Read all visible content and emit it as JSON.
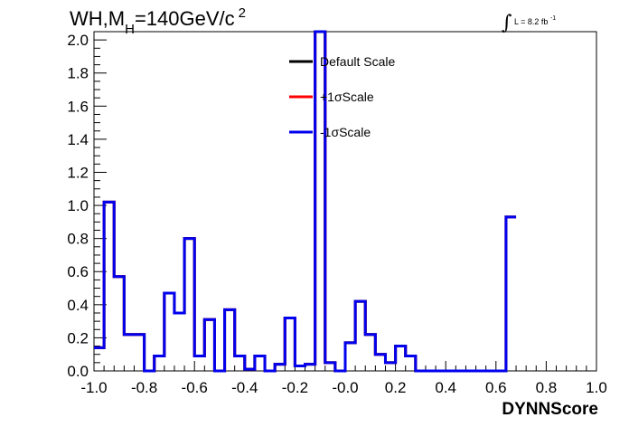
{
  "header": {
    "title_prefix": "WH,M",
    "title_sub": "H",
    "title_mid": "=140GeV/c",
    "title_sup": "2",
    "lumi_text": "L = 8.2 fb",
    "lumi_sup": "-1"
  },
  "chart_data": {
    "type": "histogram",
    "xlabel": "DYNNScore",
    "ylabel": "",
    "xlim": [
      -1.0,
      1.0
    ],
    "ylim": [
      0.0,
      2.05
    ],
    "xticks": [
      "-1.0",
      "-0.8",
      "-0.6",
      "-0.4",
      "-0.2",
      "-0.0",
      "0.2",
      "0.4",
      "0.6",
      "0.8",
      "1.0"
    ],
    "yticks": [
      "0.0",
      "0.2",
      "0.4",
      "0.6",
      "0.8",
      "1.0",
      "1.2",
      "1.4",
      "1.6",
      "1.8",
      "2.0"
    ],
    "bin_width": 0.04,
    "bin_edges_start": -1.0,
    "legend_position": "top-center",
    "series": [
      {
        "name": "Default Scale",
        "color": "#000000",
        "values": [
          0.14,
          1.02,
          0.57,
          0.22,
          0.22,
          0.0,
          0.09,
          0.47,
          0.35,
          0.8,
          0.09,
          0.31,
          0.0,
          0.37,
          0.09,
          0.01,
          0.09,
          0.0,
          0.04,
          0.32,
          0.03,
          0.04,
          2.05,
          0.05,
          0.0,
          0.17,
          0.42,
          0.22,
          0.1,
          0.05,
          0.15,
          0.09,
          0.0,
          0.0,
          0.0,
          0.0,
          0.0,
          0.0,
          0.0,
          0.0,
          0.0,
          0.93
        ]
      },
      {
        "name": "+1σScale",
        "color": "#ff0000",
        "values": [
          0.14,
          1.02,
          0.57,
          0.22,
          0.22,
          0.0,
          0.09,
          0.47,
          0.35,
          0.8,
          0.09,
          0.31,
          0.0,
          0.37,
          0.09,
          0.01,
          0.09,
          0.0,
          0.04,
          0.32,
          0.03,
          0.04,
          2.05,
          0.05,
          0.0,
          0.17,
          0.42,
          0.22,
          0.1,
          0.05,
          0.15,
          0.09,
          0.0,
          0.0,
          0.0,
          0.0,
          0.0,
          0.0,
          0.0,
          0.0,
          0.0,
          0.93
        ]
      },
      {
        "name": "-1σScale",
        "color": "#0000ee",
        "values": [
          0.14,
          1.02,
          0.57,
          0.22,
          0.22,
          0.0,
          0.09,
          0.47,
          0.35,
          0.8,
          0.09,
          0.31,
          0.0,
          0.37,
          0.09,
          0.01,
          0.09,
          0.0,
          0.04,
          0.32,
          0.03,
          0.04,
          2.05,
          0.05,
          0.0,
          0.17,
          0.42,
          0.22,
          0.1,
          0.05,
          0.15,
          0.09,
          0.0,
          0.0,
          0.0,
          0.0,
          0.0,
          0.0,
          0.0,
          0.0,
          0.0,
          0.93
        ]
      }
    ]
  }
}
